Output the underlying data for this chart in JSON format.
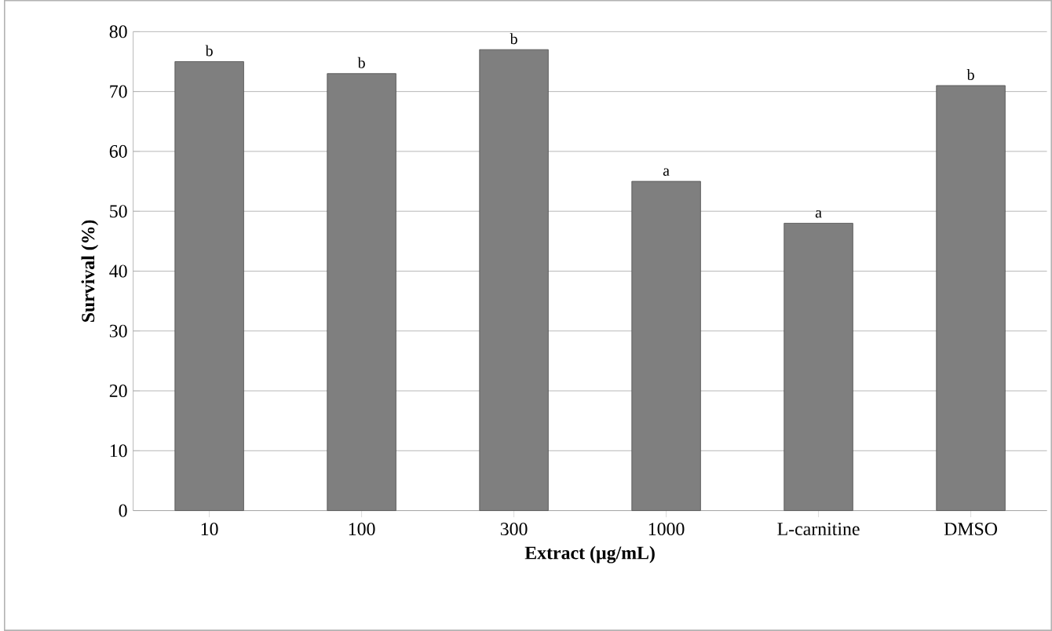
{
  "chart_data": {
    "type": "bar",
    "xlabel": "Extract (µg/mL)",
    "ylabel": "Survival (%)",
    "categories": [
      "10",
      "100",
      "300",
      "1000",
      "L-carnitine",
      "DMSO"
    ],
    "values": [
      75,
      73,
      77,
      55,
      48,
      71
    ],
    "color": "#7f7f7f",
    "ylim": [
      0,
      80
    ],
    "yticks": [
      0,
      10,
      20,
      30,
      40,
      50,
      60,
      70,
      80
    ],
    "grid": "y",
    "annotations": [
      {
        "text": "b",
        "x": "10",
        "y": 75
      },
      {
        "text": "b",
        "x": "100",
        "y": 73
      },
      {
        "text": "b",
        "x": "300",
        "y": 77
      },
      {
        "text": "a",
        "x": "1000",
        "y": 55
      },
      {
        "text": "a",
        "x": "L-carnitine",
        "y": 48
      },
      {
        "text": "b",
        "x": "DMSO",
        "y": 71
      }
    ]
  }
}
